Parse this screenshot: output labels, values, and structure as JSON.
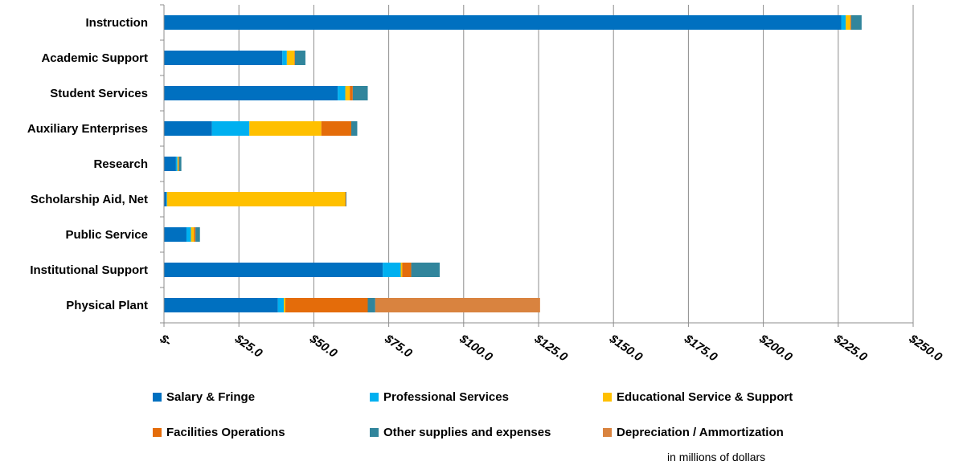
{
  "chart_data": {
    "type": "bar",
    "orientation": "horizontal",
    "stacked": true,
    "categories": [
      "Instruction",
      "Academic Support",
      "Student Services",
      "Auxiliary Enterprises",
      "Research",
      "Scholarship Aid, Net",
      "Public Service",
      "Institutional Support",
      "Physical Plant"
    ],
    "series": [
      {
        "name": "Salary & Fringe",
        "color": "#0070C0",
        "values": [
          226,
          39.5,
          58,
          16,
          4,
          0.8,
          7.5,
          73,
          38
        ]
      },
      {
        "name": "Professional Services",
        "color": "#00B0F0",
        "values": [
          1.5,
          1.5,
          2.5,
          12.5,
          0.5,
          0.2,
          1.5,
          6,
          2
        ]
      },
      {
        "name": "Educational Service & Support",
        "color": "#FFC000",
        "values": [
          1.5,
          2.5,
          1.5,
          24,
          0.3,
          59.5,
          1,
          0.5,
          0.5
        ]
      },
      {
        "name": "Facilities Operations",
        "color": "#E46C0A",
        "values": [
          0.3,
          0.2,
          1,
          10,
          0.2,
          0.2,
          0.5,
          3,
          27.5
        ]
      },
      {
        "name": "Other supplies and expenses",
        "color": "#31859C",
        "values": [
          3.5,
          3.5,
          5,
          2,
          0.8,
          0.2,
          1.5,
          9.5,
          2.5
        ]
      },
      {
        "name": "Depreciation / Ammortization",
        "color": "#D9833F",
        "values": [
          0,
          0,
          0,
          0,
          0,
          0,
          0,
          0,
          55
        ]
      }
    ],
    "xlim": [
      0,
      250
    ],
    "x_ticks": [
      0,
      25,
      50,
      75,
      100,
      125,
      150,
      175,
      200,
      225,
      250
    ],
    "x_tick_labels": [
      "$-",
      "$25.0",
      "$50.0",
      "$75.0",
      "$100.0",
      "$125.0",
      "$150.0",
      "$175.0",
      "$200.0",
      "$225.0",
      "$250.0"
    ],
    "grid": true,
    "legend_position": "bottom",
    "units_note": "in millions of dollars"
  }
}
